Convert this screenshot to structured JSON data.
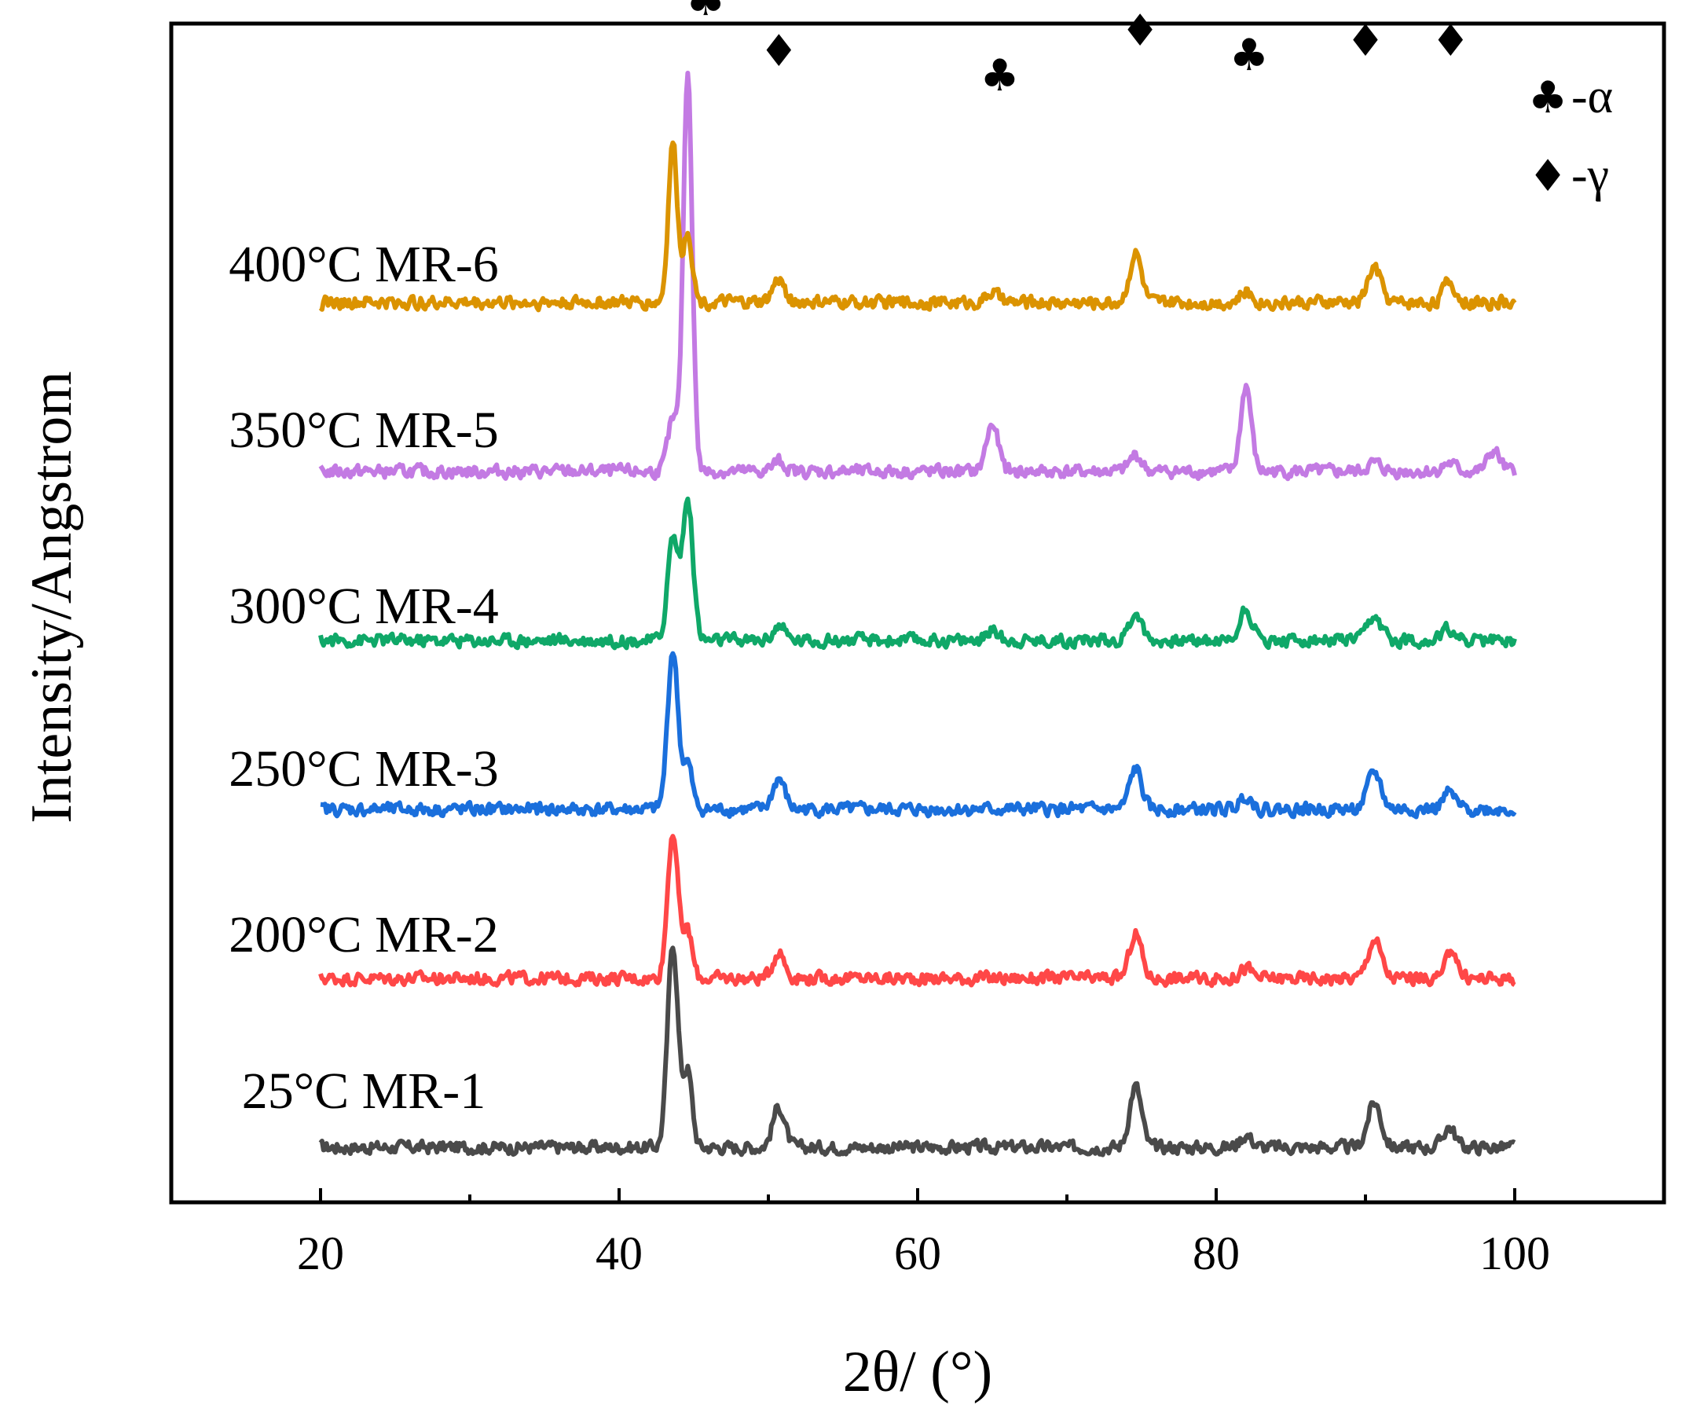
{
  "chart_data": {
    "type": "line",
    "title": "",
    "xlabel": "2θ/ (°)",
    "ylabel": "Intensity/Angstrom",
    "xlim": [
      10,
      110
    ],
    "xticks": [
      20,
      40,
      60,
      80,
      100
    ],
    "xtick_labels": [
      "20",
      "40",
      "60",
      "80",
      "100"
    ],
    "yticks_shown": false,
    "series": [
      {
        "name": "25°C MR-1",
        "color": "#4a4a4a",
        "offset": 0,
        "peaks": [
          [
            43.6,
            1.0,
            0.35
          ],
          [
            44.6,
            0.37,
            0.3
          ],
          [
            50.7,
            0.2,
            0.4
          ],
          [
            74.6,
            0.3,
            0.4
          ],
          [
            82.0,
            0.06,
            0.4
          ],
          [
            90.6,
            0.22,
            0.45
          ],
          [
            95.6,
            0.1,
            0.4
          ]
        ]
      },
      {
        "name": "200°C MR-2",
        "color": "#ff4747",
        "offset": 1,
        "peaks": [
          [
            43.6,
            0.72,
            0.35
          ],
          [
            44.6,
            0.23,
            0.3
          ],
          [
            50.7,
            0.13,
            0.4
          ],
          [
            74.6,
            0.22,
            0.4
          ],
          [
            82.0,
            0.05,
            0.4
          ],
          [
            90.6,
            0.19,
            0.45
          ],
          [
            95.8,
            0.15,
            0.35
          ]
        ]
      },
      {
        "name": "250°C MR-3",
        "color": "#1a6fdc",
        "offset": 2,
        "peaks": [
          [
            43.6,
            0.78,
            0.35
          ],
          [
            44.6,
            0.22,
            0.3
          ],
          [
            50.7,
            0.15,
            0.4
          ],
          [
            74.6,
            0.2,
            0.4
          ],
          [
            82.0,
            0.07,
            0.4
          ],
          [
            90.6,
            0.18,
            0.45
          ],
          [
            95.6,
            0.08,
            0.4
          ]
        ]
      },
      {
        "name": "300°C MR-4",
        "color": "#0fa868",
        "offset": 3,
        "peaks": [
          [
            43.6,
            0.5,
            0.35
          ],
          [
            44.6,
            0.68,
            0.35
          ],
          [
            50.7,
            0.07,
            0.4
          ],
          [
            65.0,
            0.05,
            0.4
          ],
          [
            74.6,
            0.14,
            0.4
          ],
          [
            82.0,
            0.16,
            0.4
          ],
          [
            90.6,
            0.11,
            0.45
          ],
          [
            95.6,
            0.06,
            0.4
          ]
        ]
      },
      {
        "name": "350°C MR-5",
        "color": "#c37ae3",
        "offset": 4,
        "peaks": [
          [
            43.6,
            0.25,
            0.35
          ],
          [
            44.6,
            1.95,
            0.3
          ],
          [
            50.7,
            0.05,
            0.4
          ],
          [
            65.0,
            0.23,
            0.4
          ],
          [
            74.6,
            0.08,
            0.4
          ],
          [
            82.0,
            0.42,
            0.35
          ],
          [
            90.6,
            0.04,
            0.45
          ],
          [
            95.6,
            0.04,
            0.4
          ],
          [
            98.6,
            0.1,
            0.4
          ]
        ]
      },
      {
        "name": "400°C MR-6",
        "color": "#db9300",
        "offset": 5,
        "peaks": [
          [
            43.6,
            0.78,
            0.3
          ],
          [
            44.6,
            0.35,
            0.3
          ],
          [
            50.7,
            0.11,
            0.4
          ],
          [
            65.0,
            0.05,
            0.4
          ],
          [
            74.6,
            0.24,
            0.4
          ],
          [
            82.0,
            0.05,
            0.4
          ],
          [
            90.6,
            0.17,
            0.45
          ],
          [
            95.6,
            0.1,
            0.4
          ]
        ]
      }
    ],
    "annotations": [
      {
        "symbol": "♦",
        "x": 43.2,
        "label_y": 5.82,
        "phase": "γ"
      },
      {
        "symbol": "♣",
        "x": 45.8,
        "label_y": 5.62,
        "phase": "α"
      },
      {
        "symbol": "♦",
        "x": 50.7,
        "label_y": 5.37,
        "phase": "γ"
      },
      {
        "symbol": "♣",
        "x": 65.5,
        "label_y": 5.25,
        "phase": "α"
      },
      {
        "symbol": "♦",
        "x": 74.9,
        "label_y": 5.47,
        "phase": "γ"
      },
      {
        "symbol": "♣",
        "x": 82.2,
        "label_y": 5.35,
        "phase": "α"
      },
      {
        "symbol": "♦",
        "x": 90.0,
        "label_y": 5.42,
        "phase": "γ"
      },
      {
        "symbol": "♦",
        "x": 95.7,
        "label_y": 5.42,
        "phase": "γ"
      }
    ],
    "legend": {
      "placement": "top-right",
      "entries": [
        {
          "symbol": "♣",
          "text": "-α"
        },
        {
          "symbol": "♦",
          "text": "-γ"
        }
      ]
    }
  }
}
